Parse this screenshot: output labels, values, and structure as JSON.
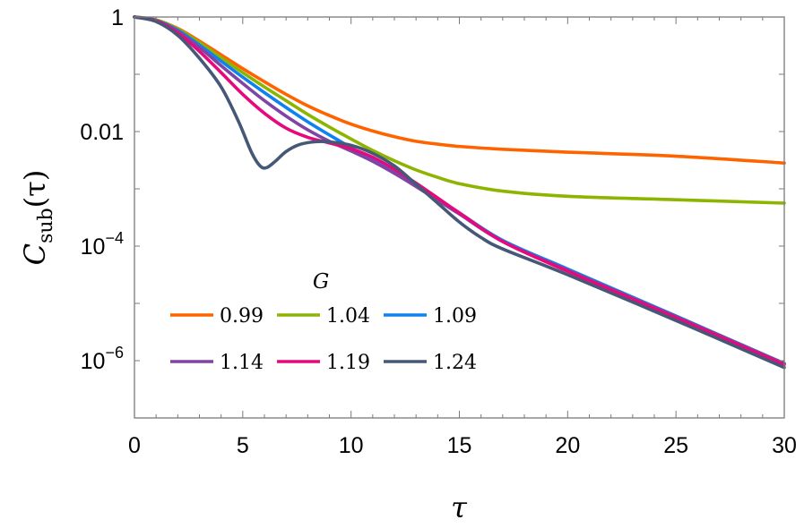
{
  "chart_data": {
    "type": "line",
    "title": "",
    "xlabel": "τ",
    "ylabel": "C_sub(τ)",
    "ylabel_main": "C",
    "ylabel_sub": "sub",
    "ylabel_arg": "(τ)",
    "yscale": "log",
    "xlim": [
      0,
      30
    ],
    "ylim": [
      1e-07,
      1
    ],
    "grid": false,
    "x_ticks": [
      "0",
      "5",
      "10",
      "15",
      "20",
      "25",
      "30"
    ],
    "y_ticks": [
      {
        "value": 1,
        "base": "1",
        "exp": ""
      },
      {
        "value": 0.01,
        "base": "0.01",
        "exp": ""
      },
      {
        "value": 0.0001,
        "base": "10",
        "exp": "−4"
      },
      {
        "value": 1e-06,
        "base": "10",
        "exp": "−6"
      }
    ],
    "legend": {
      "title": "G",
      "position": "lower-left inside",
      "entries": [
        "0.99",
        "1.04",
        "1.09",
        "1.14",
        "1.19",
        "1.24"
      ]
    },
    "series_format": "points are [tau, log10(C_sub)]",
    "series": [
      {
        "name": "0.99",
        "color": "#FF6300",
        "points": [
          [
            0,
            0
          ],
          [
            1,
            -0.05
          ],
          [
            2,
            -0.2
          ],
          [
            3,
            -0.42
          ],
          [
            4,
            -0.66
          ],
          [
            5,
            -0.9
          ],
          [
            6,
            -1.13
          ],
          [
            7,
            -1.35
          ],
          [
            8,
            -1.55
          ],
          [
            9,
            -1.72
          ],
          [
            10,
            -1.87
          ],
          [
            11,
            -1.99
          ],
          [
            12,
            -2.09
          ],
          [
            13,
            -2.17
          ],
          [
            14,
            -2.22
          ],
          [
            15,
            -2.26
          ],
          [
            17,
            -2.31
          ],
          [
            20,
            -2.36
          ],
          [
            25,
            -2.43
          ],
          [
            30,
            -2.55
          ]
        ]
      },
      {
        "name": "1.04",
        "color": "#8CB400",
        "points": [
          [
            0,
            0
          ],
          [
            1,
            -0.05
          ],
          [
            2,
            -0.21
          ],
          [
            3,
            -0.45
          ],
          [
            4,
            -0.71
          ],
          [
            5,
            -0.97
          ],
          [
            6,
            -1.22
          ],
          [
            7,
            -1.46
          ],
          [
            8,
            -1.7
          ],
          [
            9,
            -1.92
          ],
          [
            10,
            -2.13
          ],
          [
            11,
            -2.33
          ],
          [
            12,
            -2.51
          ],
          [
            13,
            -2.67
          ],
          [
            14,
            -2.8
          ],
          [
            15,
            -2.91
          ],
          [
            17,
            -3.04
          ],
          [
            20,
            -3.13
          ],
          [
            25,
            -3.19
          ],
          [
            30,
            -3.25
          ]
        ]
      },
      {
        "name": "1.09",
        "color": "#0F82F0",
        "points": [
          [
            0,
            0
          ],
          [
            1,
            -0.06
          ],
          [
            2,
            -0.23
          ],
          [
            3,
            -0.49
          ],
          [
            4,
            -0.77
          ],
          [
            5,
            -1.05
          ],
          [
            6,
            -1.32
          ],
          [
            7,
            -1.58
          ],
          [
            8,
            -1.83
          ],
          [
            9,
            -2.06
          ],
          [
            10,
            -2.28
          ],
          [
            11,
            -2.5
          ],
          [
            12,
            -2.72
          ],
          [
            13,
            -2.94
          ],
          [
            14,
            -3.18
          ],
          [
            15,
            -3.42
          ],
          [
            17,
            -3.9
          ],
          [
            20,
            -4.4
          ],
          [
            25,
            -5.22
          ],
          [
            30,
            -6.05
          ]
        ]
      },
      {
        "name": "1.14",
        "color": "#7F45A5",
        "points": [
          [
            0,
            0
          ],
          [
            1,
            -0.06
          ],
          [
            2,
            -0.25
          ],
          [
            3,
            -0.53
          ],
          [
            4,
            -0.85
          ],
          [
            5,
            -1.16
          ],
          [
            6,
            -1.46
          ],
          [
            7,
            -1.73
          ],
          [
            8,
            -1.97
          ],
          [
            9,
            -2.17
          ],
          [
            10,
            -2.34
          ],
          [
            11,
            -2.52
          ],
          [
            12,
            -2.73
          ],
          [
            13,
            -2.96
          ],
          [
            14,
            -3.2
          ],
          [
            15,
            -3.44
          ],
          [
            17,
            -3.92
          ],
          [
            20,
            -4.42
          ],
          [
            25,
            -5.23
          ],
          [
            30,
            -6.05
          ]
        ]
      },
      {
        "name": "1.19",
        "color": "#E6097C",
        "points": [
          [
            0,
            0
          ],
          [
            1,
            -0.07
          ],
          [
            2,
            -0.28
          ],
          [
            3,
            -0.6
          ],
          [
            4,
            -0.97
          ],
          [
            5,
            -1.35
          ],
          [
            6,
            -1.68
          ],
          [
            7,
            -1.94
          ],
          [
            8,
            -2.1
          ],
          [
            9,
            -2.2
          ],
          [
            10,
            -2.3
          ],
          [
            11,
            -2.45
          ],
          [
            12,
            -2.66
          ],
          [
            13,
            -2.9
          ],
          [
            14,
            -3.16
          ],
          [
            15,
            -3.42
          ],
          [
            17,
            -3.92
          ],
          [
            20,
            -4.44
          ],
          [
            25,
            -5.25
          ],
          [
            30,
            -6.07
          ]
        ]
      },
      {
        "name": "1.24",
        "color": "#455877",
        "points": [
          [
            0,
            0
          ],
          [
            1,
            -0.08
          ],
          [
            2,
            -0.32
          ],
          [
            3,
            -0.72
          ],
          [
            4,
            -1.22
          ],
          [
            4.8,
            -1.82
          ],
          [
            5.4,
            -2.36
          ],
          [
            5.8,
            -2.6
          ],
          [
            6.1,
            -2.63
          ],
          [
            6.5,
            -2.52
          ],
          [
            7,
            -2.35
          ],
          [
            7.6,
            -2.23
          ],
          [
            8.3,
            -2.18
          ],
          [
            9,
            -2.18
          ],
          [
            10,
            -2.24
          ],
          [
            11,
            -2.38
          ],
          [
            12,
            -2.6
          ],
          [
            13,
            -2.92
          ],
          [
            14,
            -3.25
          ],
          [
            15,
            -3.58
          ],
          [
            16,
            -3.85
          ],
          [
            17,
            -4.05
          ],
          [
            20,
            -4.5
          ],
          [
            25,
            -5.3
          ],
          [
            30,
            -6.12
          ]
        ]
      }
    ]
  }
}
